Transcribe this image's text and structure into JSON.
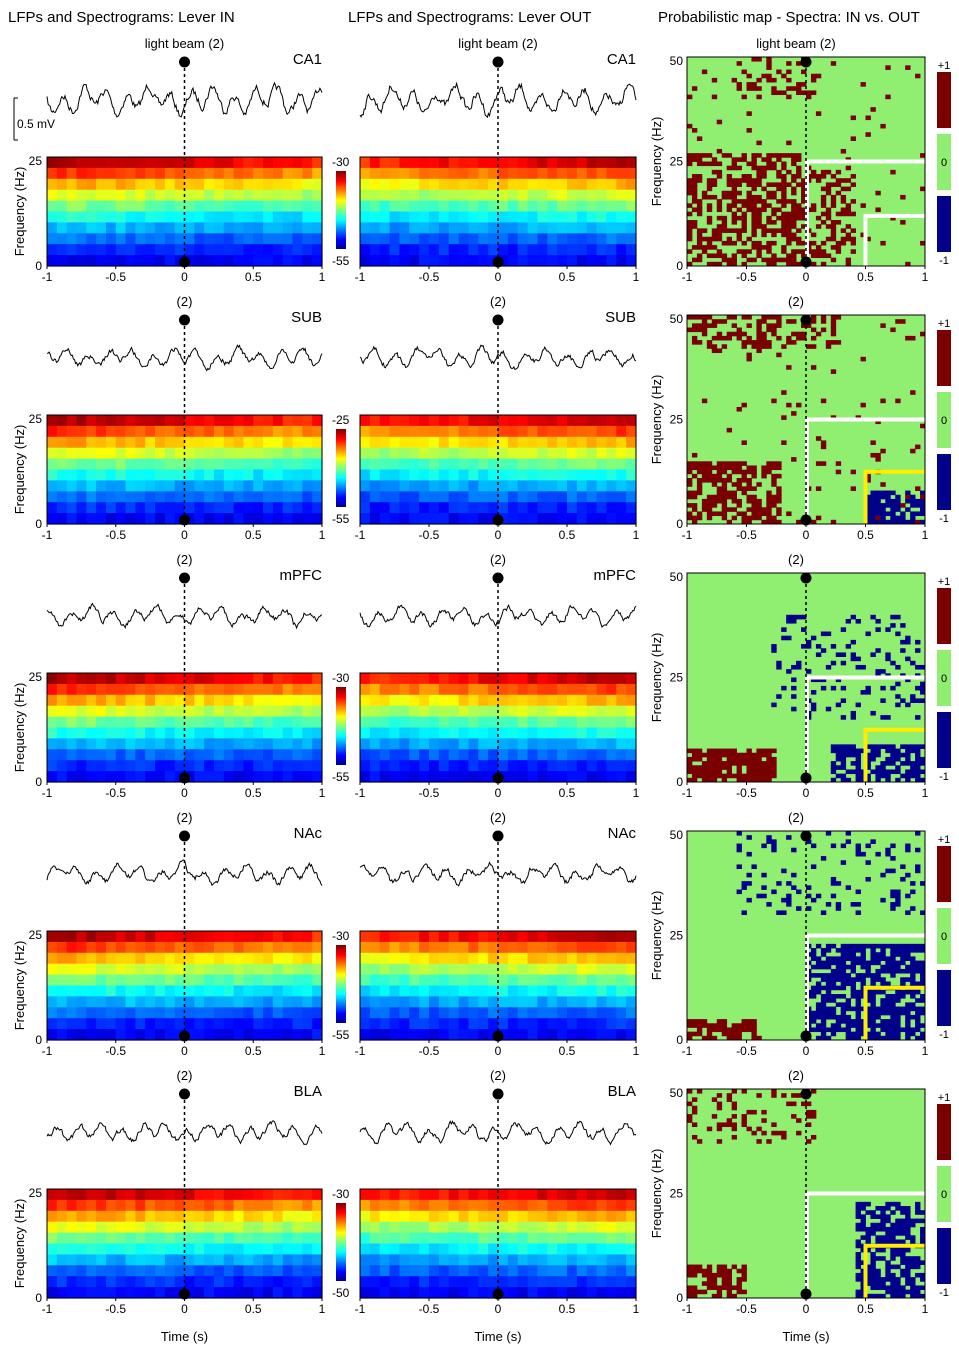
{
  "headers": {
    "col1": "LFPs and Spectrograms: Lever IN",
    "col2": "LFPs and Spectrograms: Lever OUT",
    "col3": "Probabilistic map - Spectra: IN vs. OUT"
  },
  "event_label_first": "light beam (2)",
  "event_label": "(2)",
  "scale_bar_label": "0.5 mV",
  "freq_axis_label": "Frequency (Hz)",
  "time_axis_label": "Time (s)",
  "x_ticks": [
    "-1",
    "-0.5",
    "0",
    "0.5",
    "1"
  ],
  "spec_y_ticks": [
    "0",
    "25"
  ],
  "map_y_ticks": [
    "0",
    "25",
    "50"
  ],
  "map_colorbar": [
    "+1",
    "0",
    "-1"
  ],
  "colors": {
    "map_pos": "#7a0000",
    "map_zero": "#90ee70",
    "map_neg": "#00008b",
    "white_line": "#ffffff",
    "yellow_line": "#ffee00"
  },
  "rows": [
    {
      "region": "CA1",
      "cbar_top": "-30",
      "cbar_bottom": "-55"
    },
    {
      "region": "SUB",
      "cbar_top": "-25",
      "cbar_bottom": "-55"
    },
    {
      "region": "mPFC",
      "cbar_top": "-30",
      "cbar_bottom": "-55"
    },
    {
      "region": "NAc",
      "cbar_top": "-30",
      "cbar_bottom": "-55"
    },
    {
      "region": "BLA",
      "cbar_top": "-30",
      "cbar_bottom": "-50"
    }
  ]
}
